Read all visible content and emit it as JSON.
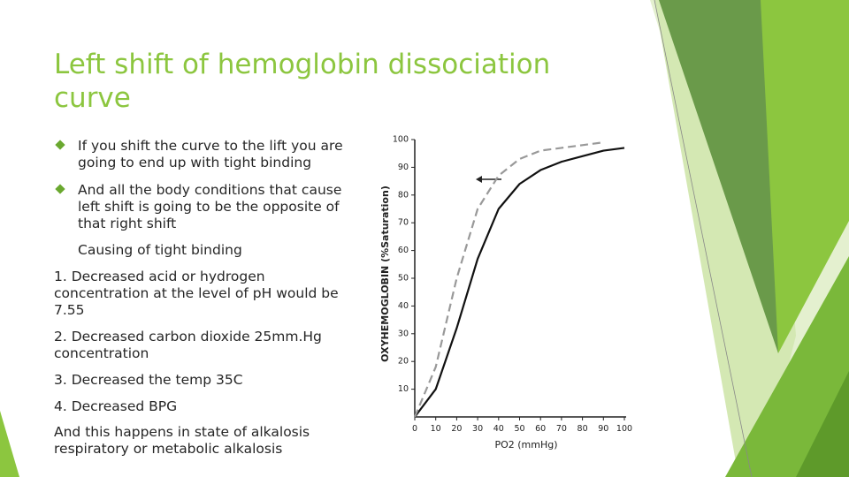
{
  "title": "Left shift of hemoglobin dissociation curve",
  "bullets": [
    "If you shift the curve to the lift you are going to end up with tight binding",
    "And all the body conditions that cause left shift is going to be the opposite of that right shift"
  ],
  "subheading": "Causing of tight binding",
  "items": [
    "1. Decreased acid or hydrogen concentration at the level of pH would be 7.55",
    "2. Decreased carbon dioxide  25mm.Hg concentration",
    "3. Decreased the temp  35C",
    "4. Decreased BPG",
    "And this happens in state of alkalosis respiratory or metabolic alkalosis"
  ],
  "chart_data": {
    "type": "line",
    "x_label": "PO2 (mmHg)",
    "y_label": "OXYHEMOGLOBIN (%Saturation)",
    "x": [
      0,
      10,
      20,
      30,
      40,
      50,
      60,
      70,
      80,
      90,
      100
    ],
    "series": [
      {
        "color": "#111111",
        "dash": false,
        "values": [
          0,
          10,
          32,
          57,
          75,
          84,
          89,
          92,
          94,
          96,
          97
        ]
      },
      {
        "color": "#999999",
        "dash": true,
        "values": [
          0,
          18,
          50,
          75,
          87,
          93,
          96,
          97,
          98,
          99,
          null
        ]
      }
    ],
    "xlim": [
      0,
      100
    ],
    "ylim": [
      0,
      100
    ],
    "xticks": [
      0,
      10,
      20,
      30,
      40,
      50,
      60,
      70,
      80,
      90,
      100
    ],
    "yticks": [
      10,
      20,
      30,
      40,
      50,
      60,
      70,
      80,
      90,
      100
    ]
  }
}
